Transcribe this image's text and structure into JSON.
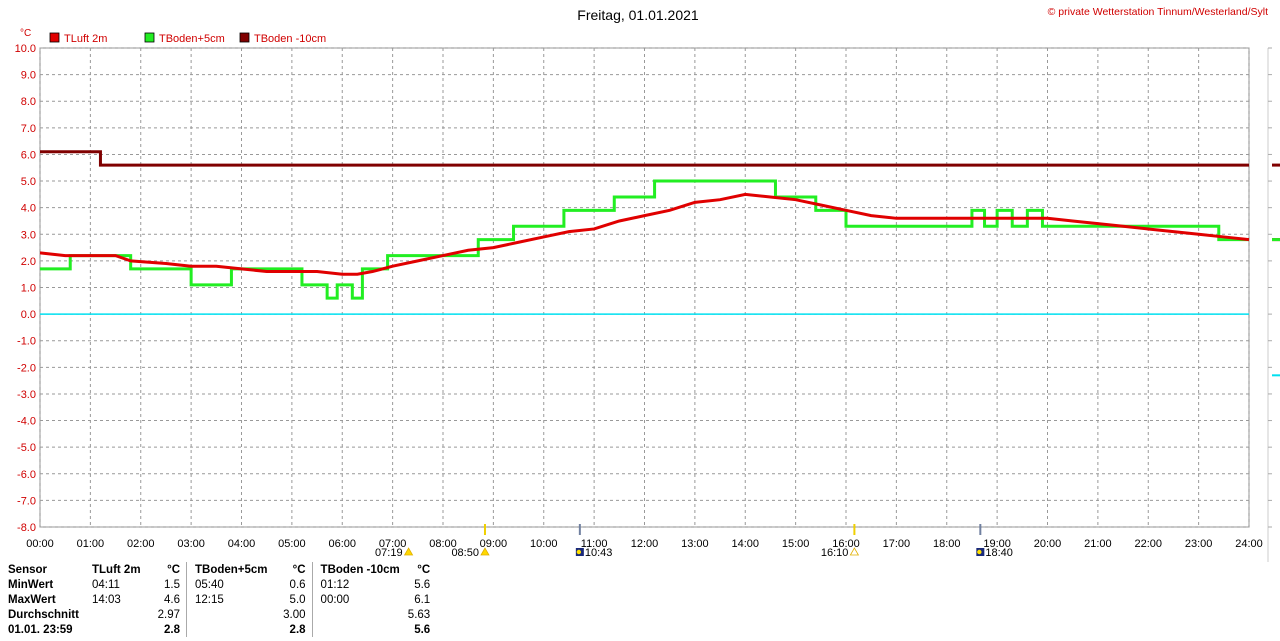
{
  "header": {
    "title": "Freitag, 01.01.2021",
    "copyright": "© private Wetterstation Tinnum/Westerland/Sylt",
    "unit": "°C"
  },
  "colors": {
    "tluft": "#e00000",
    "tboden5": "#22ee22",
    "tboden10": "#800000",
    "zero": "#00e0f0"
  },
  "chart_data": {
    "type": "line",
    "title": "Freitag, 01.01.2021",
    "ylabel": "°C",
    "xlim": [
      0,
      24
    ],
    "ylim": [
      -8,
      10
    ],
    "grid": true,
    "legend": "top-left",
    "x_ticks": [
      "00:00",
      "01:00",
      "02:00",
      "03:00",
      "04:00",
      "05:00",
      "06:00",
      "07:00",
      "08:00",
      "09:00",
      "10:00",
      "11:00",
      "12:00",
      "13:00",
      "14:00",
      "15:00",
      "16:00",
      "17:00",
      "18:00",
      "19:00",
      "20:00",
      "21:00",
      "22:00",
      "23:00",
      "24:00"
    ],
    "y_ticks": [
      "10.0",
      "9.0",
      "8.0",
      "7.0",
      "6.0",
      "5.0",
      "4.0",
      "3.0",
      "2.0",
      "1.0",
      "0.0",
      "-1.0",
      "-2.0",
      "-3.0",
      "-4.0",
      "-5.0",
      "-6.0",
      "-7.0",
      "-8.0"
    ],
    "series": [
      {
        "name": "TLuft 2m",
        "color": "#e00000",
        "step": false,
        "x": [
          0,
          0.5,
          1,
          1.5,
          1.8,
          2.5,
          3,
          3.5,
          4,
          4.5,
          5,
          5.5,
          6,
          6.3,
          6.6,
          7,
          7.5,
          8,
          8.5,
          9,
          9.5,
          10,
          10.5,
          11,
          11.5,
          12,
          12.5,
          13,
          13.5,
          14,
          14.5,
          15,
          15.5,
          16,
          16.5,
          17,
          17.5,
          18,
          18.5,
          19,
          19.5,
          20,
          20.5,
          21,
          21.5,
          22,
          22.5,
          23,
          23.5,
          24
        ],
        "y": [
          2.3,
          2.2,
          2.2,
          2.2,
          2.0,
          1.9,
          1.8,
          1.8,
          1.7,
          1.6,
          1.6,
          1.6,
          1.5,
          1.5,
          1.6,
          1.8,
          2.0,
          2.2,
          2.4,
          2.5,
          2.7,
          2.9,
          3.1,
          3.2,
          3.5,
          3.7,
          3.9,
          4.2,
          4.3,
          4.5,
          4.4,
          4.3,
          4.1,
          3.9,
          3.7,
          3.6,
          3.6,
          3.6,
          3.6,
          3.6,
          3.6,
          3.6,
          3.5,
          3.4,
          3.3,
          3.2,
          3.1,
          3.0,
          2.9,
          2.8
        ]
      },
      {
        "name": "TBoden+5cm",
        "color": "#22ee22",
        "step": true,
        "x": [
          0,
          0.6,
          1.8,
          3,
          3.8,
          5.2,
          5.7,
          5.9,
          6.2,
          6.4,
          6.9,
          8.7,
          9.4,
          10.4,
          11.4,
          12.2,
          14.6,
          15.4,
          16,
          18.5,
          18.75,
          19,
          19.3,
          19.6,
          19.9,
          20.2,
          21,
          23.4,
          24
        ],
        "y": [
          1.7,
          2.2,
          1.7,
          1.1,
          1.7,
          1.1,
          0.6,
          1.1,
          0.6,
          1.7,
          2.2,
          2.8,
          3.3,
          3.9,
          4.4,
          5.0,
          4.4,
          3.9,
          3.3,
          3.9,
          3.3,
          3.9,
          3.3,
          3.9,
          3.3,
          3.3,
          3.3,
          2.8,
          2.8
        ]
      },
      {
        "name": "TBoden -10cm",
        "color": "#800000",
        "step": true,
        "x": [
          0,
          1.2,
          24
        ],
        "y": [
          6.1,
          5.6,
          5.6
        ]
      }
    ]
  },
  "events": [
    {
      "time": "07:19",
      "type": "sunrise"
    },
    {
      "time": "08:50",
      "type": "sun"
    },
    {
      "time": "10:43",
      "type": "moon"
    },
    {
      "time": "16:10",
      "type": "sunset"
    },
    {
      "time": "18:40",
      "type": "moon"
    }
  ],
  "stats": {
    "headers": [
      "Sensor",
      "TLuft 2m",
      "°C",
      "TBoden+5cm",
      "°C",
      "TBoden -10cm",
      "°C"
    ],
    "rows": [
      {
        "label": "MinWert",
        "v": [
          "04:11",
          "1.5",
          "05:40",
          "0.6",
          "01:12",
          "5.6"
        ]
      },
      {
        "label": "MaxWert",
        "v": [
          "14:03",
          "4.6",
          "12:15",
          "5.0",
          "00:00",
          "6.1"
        ]
      },
      {
        "label": "Durchschnitt",
        "v": [
          "",
          "2.97",
          "",
          "3.00",
          "",
          "5.63"
        ]
      },
      {
        "label": "01.01. 23:59",
        "v": [
          "",
          "2.8",
          "",
          "2.8",
          "",
          "5.6"
        ]
      }
    ]
  }
}
